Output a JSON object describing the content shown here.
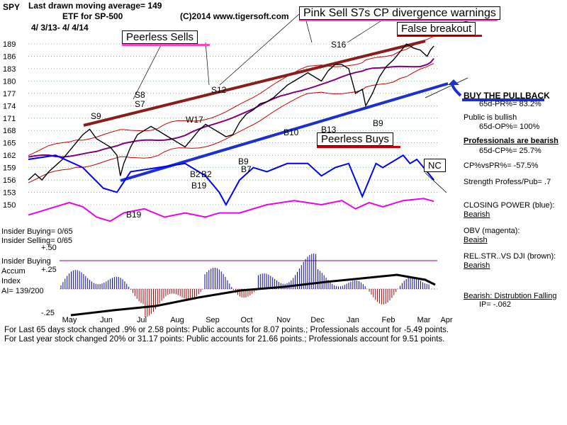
{
  "header": {
    "symbol": "SPY",
    "ma_note": "Last drawn moving average= 149",
    "etf": "ETF for SP-500",
    "copyright": "(C)2014 www.tigersoft.com",
    "dates": "4/ 3/13- 4/ 4/14"
  },
  "callouts": {
    "pink_sell": "Pink Sell S7s CP divergence warnings",
    "false_breakout": "False breakout",
    "peerless_sells": "Peerless Sells",
    "peerless_buys": "Peerless Buys",
    "buy_pullback": "BUY THE PULLBACK",
    "nc": "NC"
  },
  "signals": {
    "s9": "S9",
    "s8": "S8",
    "s7": "S7",
    "s12": "S12",
    "s16": "S16",
    "w17": "W17",
    "b2a": "B2",
    "b2b": "B2",
    "b19a": "B19",
    "b19b": "B19",
    "b9a": "B9",
    "b7": "B7",
    "b10": "B10",
    "b13": "B13",
    "b9b": "B9"
  },
  "right_panel": {
    "pr": "65d-PR%= 83.2%",
    "public": "Public is bullish",
    "op": "65d-OP%= 100%",
    "pros": "Professionals are bearish",
    "cp": "65d-CP%= 25.7%",
    "cpvspr": "CP%vsPR%= -57.5%",
    "strength": "Strength Profess/Pub= .7",
    "cp_label": "CLOSING POWER (blue):",
    "cp_val": "Bearish",
    "obv_label": "OBV (magenta):",
    "obv_val": "Beaish",
    "rel_label": "REL.STR..VS DJI (brown):",
    "rel_val": "Bearish",
    "ai_label": "Bearish: Distrubtion Falling",
    "ip": "IP= -.062"
  },
  "insider": {
    "buying": "Insider Buying= 0/65",
    "selling": "Insider Selling= 0/65",
    "top": "+.50",
    "label1": "Insider Buying",
    "label2": "Accum",
    "label3": "Index",
    "ai": "AI= 139/200",
    "p25": "+.25",
    "m25": "-.25"
  },
  "footer": {
    "line1": "For Last 65 days stock changed  .9% or  2.58 points:  Public accounts for  8.07 points.;  Professionals account for -5.49 points.",
    "line2": "For Last year stock changed  20% or  31.17 points:  Public accounts for  21.66 points.;  Professionals account for  9.51 points."
  },
  "colors": {
    "price": "#000000",
    "closing_power": "#0000ff",
    "obv": "#ee00ee",
    "rel_strength": "#7a1f1f",
    "ma": "#800080",
    "band": "#cc0000",
    "trend_blue": "#1e2fd0",
    "accum_up": "#0000aa",
    "accum_down": "#aa0000",
    "callout_pink": "#ff44cc"
  },
  "chart_data": {
    "type": "line",
    "y_ticks": [
      "189",
      "186",
      "183",
      "180",
      "177",
      "174",
      "171",
      "168",
      "165",
      "162",
      "159",
      "156",
      "153",
      "150"
    ],
    "x_ticks": [
      "May",
      "Jun",
      "Jul",
      "Aug",
      "Sep",
      "Oct",
      "Nov",
      "Dec",
      "Jan",
      "Feb",
      "Mar",
      "Apr"
    ],
    "grid": "dotted horizontal",
    "series": [
      {
        "values": [
          [
            0,
            156
          ],
          [
            2,
            157.5
          ],
          [
            4,
            156
          ],
          [
            6,
            158
          ],
          [
            8,
            159.5
          ],
          [
            10,
            161
          ],
          [
            12,
            163
          ],
          [
            14,
            165
          ],
          [
            16,
            167
          ],
          [
            18,
            168.3
          ],
          [
            20,
            166
          ],
          [
            22,
            165
          ],
          [
            24,
            164
          ],
          [
            26,
            162
          ],
          [
            27,
            157
          ],
          [
            28,
            160
          ],
          [
            30,
            164
          ],
          [
            32,
            167
          ],
          [
            34,
            168
          ],
          [
            36,
            169
          ],
          [
            38,
            168
          ],
          [
            40,
            167
          ],
          [
            42,
            166
          ],
          [
            44,
            165
          ],
          [
            46,
            164
          ],
          [
            48,
            166
          ],
          [
            50,
            168
          ],
          [
            52,
            169.5
          ],
          [
            54,
            168.5
          ],
          [
            56,
            167.5
          ],
          [
            58,
            166.5
          ],
          [
            60,
            167
          ],
          [
            62,
            170
          ],
          [
            64,
            172
          ],
          [
            66,
            173
          ],
          [
            68,
            174.5
          ],
          [
            70,
            175
          ],
          [
            72,
            176
          ],
          [
            74,
            177.5
          ],
          [
            76,
            179
          ],
          [
            78,
            180
          ],
          [
            80,
            181
          ],
          [
            82,
            182
          ],
          [
            84,
            181
          ],
          [
            86,
            180
          ],
          [
            88,
            182.5
          ],
          [
            90,
            184
          ],
          [
            92,
            184
          ],
          [
            94,
            183
          ],
          [
            96,
            177
          ],
          [
            98,
            178
          ],
          [
            99,
            174
          ],
          [
            101,
            177
          ],
          [
            103,
            181
          ],
          [
            105,
            183.5
          ],
          [
            107,
            185
          ],
          [
            109,
            187
          ],
          [
            111,
            189
          ],
          [
            113,
            188
          ],
          [
            115,
            187.5
          ],
          [
            117,
            186
          ],
          [
            118,
            187.5
          ],
          [
            119,
            188.5
          ]
        ]
      },
      {
        "values": [
          [
            0,
            161
          ],
          [
            8,
            162
          ],
          [
            16,
            159
          ],
          [
            22,
            154
          ],
          [
            26,
            153
          ],
          [
            30,
            158
          ],
          [
            38,
            159
          ],
          [
            46,
            160
          ],
          [
            52,
            157
          ],
          [
            56,
            153
          ],
          [
            58,
            150
          ],
          [
            62,
            156
          ],
          [
            66,
            159
          ],
          [
            70,
            158
          ],
          [
            76,
            160
          ],
          [
            82,
            160
          ],
          [
            86,
            157
          ],
          [
            90,
            159
          ],
          [
            94,
            160
          ],
          [
            98,
            152
          ],
          [
            102,
            160
          ],
          [
            104,
            159
          ],
          [
            108,
            161
          ],
          [
            110,
            162
          ],
          [
            112,
            160
          ],
          [
            114,
            161
          ],
          [
            117,
            158
          ],
          [
            119,
            156
          ]
        ]
      },
      {
        "values": [
          [
            0,
            147.5
          ],
          [
            6,
            149
          ],
          [
            12,
            150.5
          ],
          [
            16,
            149.5
          ],
          [
            20,
            147
          ],
          [
            24,
            146
          ],
          [
            28,
            148
          ],
          [
            34,
            149
          ],
          [
            40,
            147
          ],
          [
            46,
            148
          ],
          [
            52,
            147
          ],
          [
            56,
            148
          ],
          [
            62,
            148
          ],
          [
            70,
            150
          ],
          [
            78,
            151
          ],
          [
            86,
            150
          ],
          [
            92,
            151
          ],
          [
            96,
            149
          ],
          [
            100,
            150.5
          ],
          [
            104,
            149.5
          ],
          [
            110,
            151
          ],
          [
            116,
            151.5
          ],
          [
            119,
            150.8
          ]
        ]
      }
    ]
  }
}
